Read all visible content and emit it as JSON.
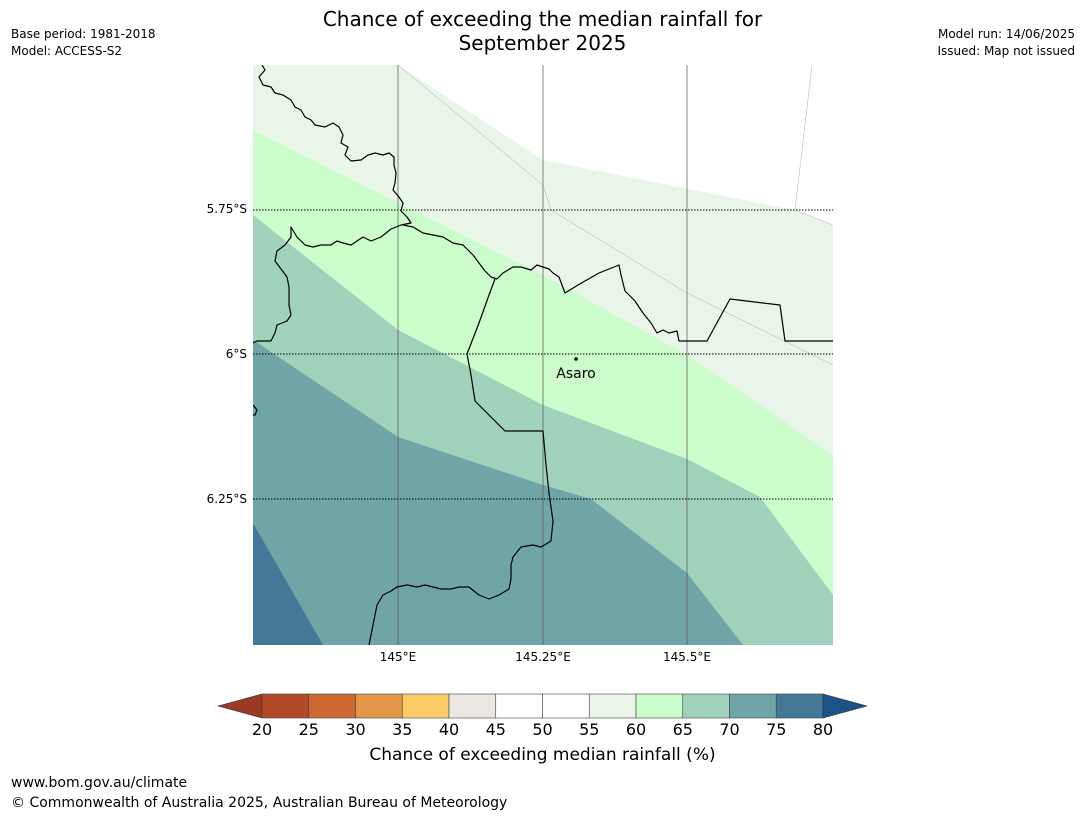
{
  "header": {
    "title_line1": "Chance of exceeding the median rainfall for",
    "title_line2": "September 2025",
    "base_period": "Base period: 1981-2018",
    "model": "Model: ACCESS-S2",
    "model_run": "Model run: 14/06/2025",
    "issued": "Issued: Map not issued"
  },
  "map": {
    "lat_labels": [
      "5.75°S",
      "6°S",
      "6.25°S"
    ],
    "lon_labels": [
      "145°E",
      "145.25°E",
      "145.5°E"
    ],
    "place_label": "Asaro",
    "zone_colors": {
      "p55_60": "#e8f5e8",
      "p60_65": "#ccfccc",
      "p65_70": "#9fd1bb",
      "p70_75": "#70a5a8",
      "p75_80": "#417996"
    }
  },
  "colorbar": {
    "title": "Chance of exceeding median rainfall (%)",
    "ticks": [
      "20",
      "25",
      "30",
      "35",
      "40",
      "45",
      "50",
      "55",
      "60",
      "65",
      "70",
      "75",
      "80"
    ],
    "under_color": "#9a3a24",
    "over_color": "#1d5289",
    "colors": [
      "#b14a26",
      "#cf6733",
      "#e39548",
      "#fccc66",
      "#ebe8e3",
      "#ffffff",
      "#ffffff",
      "#e8f5e8",
      "#ccfccc",
      "#9fd1bb",
      "#70a5a8",
      "#417996"
    ]
  },
  "footer": {
    "url": "www.bom.gov.au/climate",
    "copyright": "© Commonwealth of Australia 2025, Australian Bureau of Meteorology"
  }
}
